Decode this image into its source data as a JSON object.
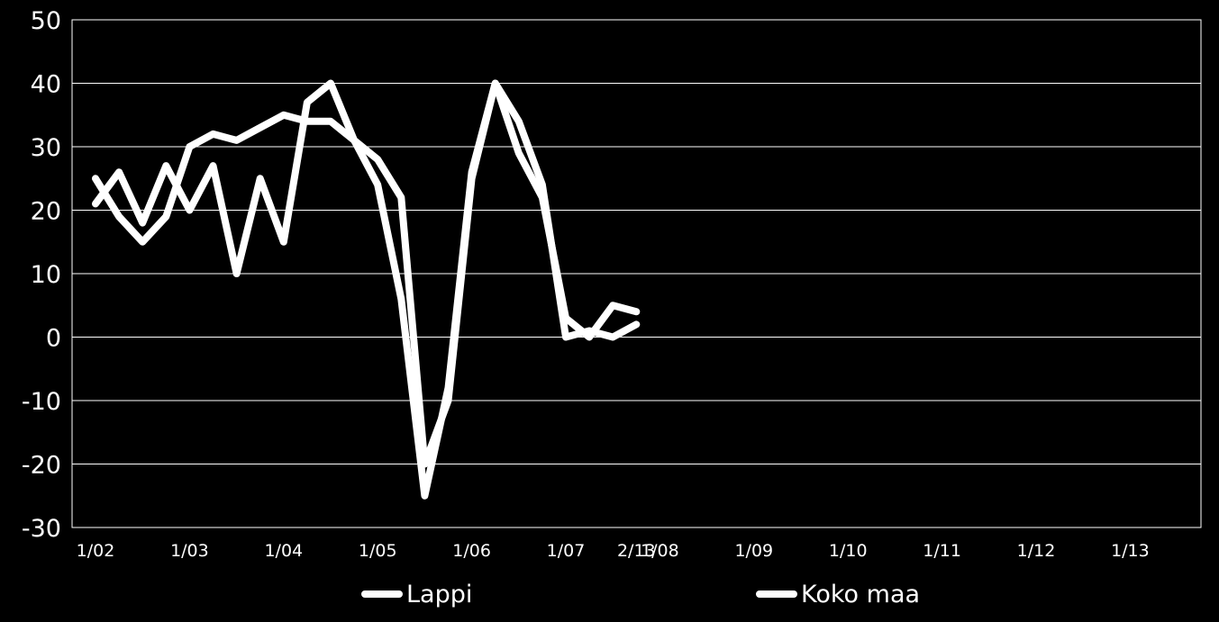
{
  "chart_data": {
    "type": "line",
    "title": "",
    "xlabel": "",
    "ylabel": "",
    "ylim": [
      -30,
      50
    ],
    "y_ticks": [
      "50",
      "40",
      "30",
      "20",
      "10",
      "0",
      "-10",
      "-20",
      "-30"
    ],
    "x_tick_labels": [
      "1/02",
      "1/03",
      "1/04",
      "1/05",
      "1/06",
      "1/07",
      "1/08",
      "1/09",
      "1/10",
      "1/11",
      "1/12",
      "1/13",
      "2/13"
    ],
    "grid": true,
    "legend_position": "bottom",
    "series": [
      {
        "name": "Lappi",
        "color": "#ffffff",
        "values": [
          25,
          19,
          15,
          19,
          30,
          32,
          31,
          33,
          35,
          34,
          34,
          31,
          24,
          6,
          -25,
          -8,
          26,
          40,
          29,
          22,
          3,
          0,
          5,
          4
        ]
      },
      {
        "name": "Koko maa",
        "color": "#ffffff",
        "values": [
          21,
          26,
          18,
          27,
          20,
          27,
          10,
          25,
          15,
          37,
          40,
          31,
          28,
          22,
          -20,
          -10,
          25,
          40,
          34,
          24,
          0,
          1,
          0,
          2
        ]
      }
    ]
  }
}
